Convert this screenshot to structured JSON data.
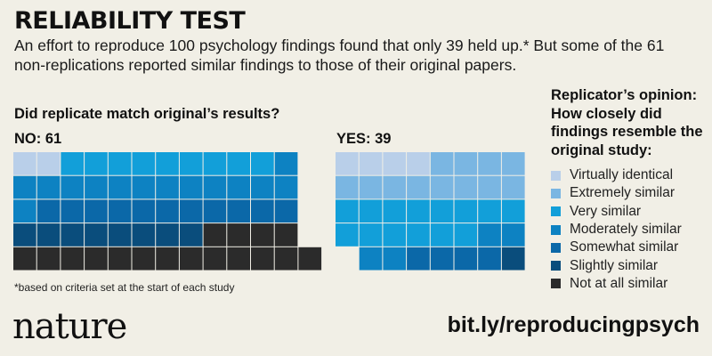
{
  "header": {
    "title": "RELIABILITY TEST",
    "subtitle": "An effort to reproduce 100 psychology findings found that only 39 held up.* But some of the 61 non-replications reported similar findings to those of their original papers."
  },
  "chart_data": {
    "type": "waffle",
    "question": "Did replicate match original’s results?",
    "groups": [
      {
        "label": "NO: 61",
        "total": 61,
        "counts": {
          "Virtually identical": 2,
          "Extremely similar": 0,
          "Very similar": 9,
          "Moderately similar": 14,
          "Somewhat similar": 11,
          "Slightly similar": 8,
          "Not at all similar": 17
        }
      },
      {
        "label": "YES: 39",
        "total": 39,
        "counts": {
          "Virtually identical": 4,
          "Extremely similar": 12,
          "Very similar": 14,
          "Moderately similar": 4,
          "Somewhat similar": 4,
          "Slightly similar": 1,
          "Not at all similar": 0
        }
      }
    ],
    "legend_title": "Replicator’s opinion: How closely did findings resemble the original study:",
    "legend": [
      {
        "label": "Virtually identical",
        "color": "#b9cfe9"
      },
      {
        "label": "Extremely similar",
        "color": "#7ab6e2"
      },
      {
        "label": "Very similar",
        "color": "#129fd9"
      },
      {
        "label": "Moderately similar",
        "color": "#0d82c2"
      },
      {
        "label": "Somewhat similar",
        "color": "#0b68a8"
      },
      {
        "label": "Slightly similar",
        "color": "#0a4d7c"
      },
      {
        "label": "Not at all similar",
        "color": "#2b2b2b"
      }
    ],
    "footnote": "*based on criteria set at the start of each study"
  },
  "footer": {
    "logo": "nature",
    "url": "bit.ly/reproducingpsych"
  }
}
